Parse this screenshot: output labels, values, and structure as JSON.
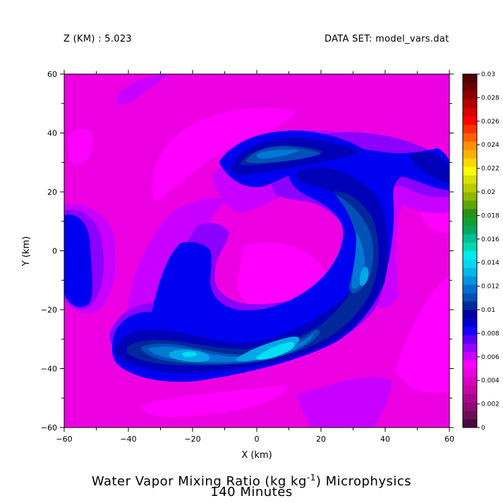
{
  "header": {
    "level_label": "Z (KM) : 5.023",
    "dataset_label": "DATA SET: model_vars.dat"
  },
  "title": {
    "line1_main": "Water Vapor Mixing Ratio (kg kg",
    "line1_sup": "-1",
    "line1_tail": ") Microphysics",
    "line2": "140 Minutes"
  },
  "chart_data": {
    "type": "heatmap",
    "xlabel": "X (km)",
    "ylabel": "Y (km)",
    "xlim": [
      -60,
      60
    ],
    "ylim": [
      -60,
      60
    ],
    "x_ticks": [
      -60,
      -40,
      -20,
      0,
      20,
      40,
      60
    ],
    "y_ticks": [
      -60,
      -40,
      -20,
      0,
      20,
      40,
      60
    ],
    "x_tick_labels": [
      "−60",
      "−40",
      "−20",
      "0",
      "20",
      "40",
      "60"
    ],
    "y_tick_labels": [
      "−60",
      "−40",
      "−20",
      "0",
      "20",
      "40",
      "60"
    ],
    "colorbar": {
      "levels": [
        0,
        0.002,
        0.004,
        0.006,
        0.008,
        0.01,
        0.012,
        0.014,
        0.016,
        0.018,
        0.02,
        0.022,
        0.024,
        0.026,
        0.028,
        0.03
      ],
      "labels": [
        "0",
        "0.002",
        "0.004",
        "0.006",
        "0.008",
        "0.01",
        "0.012",
        "0.014",
        "0.016",
        "0.018",
        "0.02",
        "0.022",
        "0.024",
        "0.026",
        "0.028",
        "0.03"
      ],
      "colors": [
        "#4a0a3c",
        "#6e0d55",
        "#8c0a72",
        "#a8088a",
        "#c407a4",
        "#d800c0",
        "#ec00e2",
        "#ff00ff",
        "#c800ff",
        "#9600ff",
        "#5a00ff",
        "#1600ff",
        "#0000d0",
        "#00009c",
        "#002a9a",
        "#0050b8",
        "#0070d0",
        "#0094e0",
        "#00b8e8",
        "#00d8ee",
        "#00eaf0",
        "#00d8b0",
        "#00c090",
        "#00a860",
        "#10a030",
        "#2a9018",
        "#5aa800",
        "#8cb800",
        "#b8cc00",
        "#d8e000",
        "#ffff00",
        "#ffd800",
        "#ffb000",
        "#ff9000",
        "#ff6000",
        "#ff3000",
        "#ff0000",
        "#d80000",
        "#b40000",
        "#900000",
        "#6c0000",
        "#500000"
      ]
    },
    "field_classes": {
      "background": 0.0055,
      "magenta": 0.0045,
      "purple": 0.0065,
      "violet": 0.0075,
      "blue": 0.0085,
      "navy": 0.0095,
      "dark_steel": 0.0105,
      "steel_blue": 0.0115,
      "azure": 0.0125,
      "sky": 0.0135,
      "cyan": 0.0145
    },
    "field_colors": {
      "background": "#ec00e2",
      "magenta": "#ff00ff",
      "purple": "#c800ff",
      "violet": "#8c00ff",
      "blue": "#0000f0",
      "navy": "#0000b8",
      "dark_steel": "#00289a",
      "steel_blue": "#0050b8",
      "azure": "#0078d4",
      "sky": "#00a8e6",
      "cyan": "#00e0f0"
    }
  }
}
